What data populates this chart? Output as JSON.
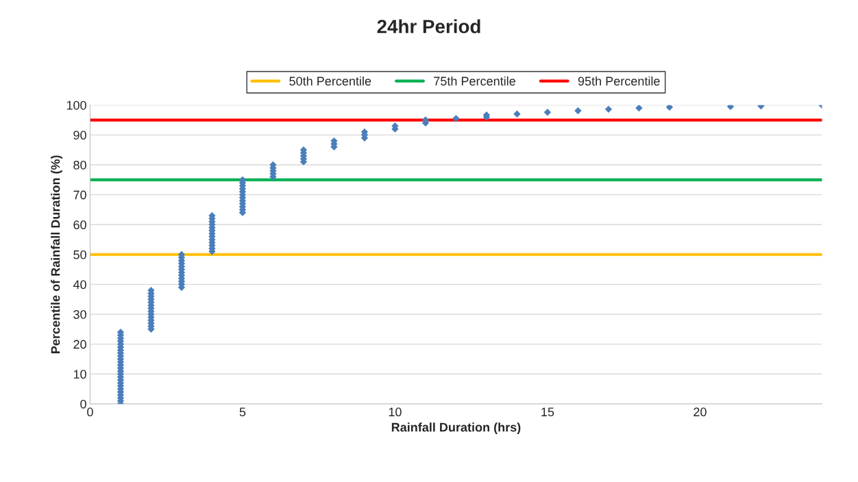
{
  "chart_data": {
    "type": "scatter",
    "title": "24hr Period",
    "xlabel": "Rainfall Duration (hrs)",
    "ylabel": "Percentile of Rainfall Duration (%)",
    "xlim": [
      0,
      24
    ],
    "xticks": [
      0,
      5,
      10,
      15,
      20
    ],
    "ylim": [
      0,
      100
    ],
    "yticks": [
      0,
      10,
      20,
      30,
      40,
      50,
      60,
      70,
      80,
      90,
      100
    ],
    "grid": "y",
    "legend": "top",
    "series": [
      {
        "marker": "diamond",
        "color": "#4a7ebb",
        "x": [
          1,
          1,
          1,
          1,
          1,
          1,
          1,
          1,
          1,
          1,
          1,
          1,
          1,
          1,
          1,
          1,
          1,
          1,
          1,
          1,
          1,
          1,
          1,
          1,
          1,
          2,
          2,
          2,
          2,
          2,
          2,
          2,
          2,
          2,
          2,
          2,
          2,
          2,
          2,
          3,
          3,
          3,
          3,
          3,
          3,
          3,
          3,
          3,
          3,
          3,
          3,
          4,
          4,
          4,
          4,
          4,
          4,
          4,
          4,
          4,
          4,
          4,
          4,
          4,
          5,
          5,
          5,
          5,
          5,
          5,
          5,
          5,
          5,
          5,
          5,
          5,
          6,
          6,
          6,
          6,
          6,
          7,
          7,
          7,
          7,
          7,
          8,
          8,
          8,
          9,
          9,
          9,
          10,
          10,
          11,
          11,
          12,
          13,
          13,
          14,
          15,
          16,
          17,
          18,
          19,
          21,
          22,
          24
        ],
        "values": [
          0,
          1,
          2,
          3,
          4,
          5,
          6,
          7,
          8,
          9,
          10,
          11,
          12,
          13,
          14,
          15,
          16,
          17,
          18,
          19,
          20,
          21,
          22,
          23,
          24,
          25,
          26,
          27,
          28,
          29,
          30,
          31,
          32,
          33,
          34,
          35,
          36,
          37,
          38,
          39,
          40,
          41,
          42,
          43,
          44,
          45,
          46,
          47,
          48,
          49,
          50,
          51,
          52,
          53,
          54,
          55,
          56,
          57,
          58,
          59,
          60,
          61,
          62,
          63,
          64,
          65,
          66,
          67,
          68,
          69,
          70,
          71,
          72,
          73,
          74,
          75,
          76,
          77,
          78,
          79,
          80,
          81,
          82,
          83,
          84,
          85,
          86,
          87,
          88,
          89,
          90,
          91,
          92,
          93,
          94,
          95,
          95.5,
          96,
          96.7,
          97,
          97.6,
          98.1,
          98.6,
          99,
          99.3,
          99.5,
          99.7,
          100
        ]
      },
      {
        "type": "line",
        "name": "50th Percentile",
        "color": "#ffc000",
        "x": [
          0,
          24
        ],
        "values": [
          50,
          50
        ]
      },
      {
        "type": "line",
        "name": "75th Percentile",
        "color": "#00b050",
        "x": [
          0,
          24
        ],
        "values": [
          75,
          75
        ]
      },
      {
        "type": "line",
        "name": "95th Percentile",
        "color": "#ff0000",
        "x": [
          0,
          24
        ],
        "values": [
          95,
          95
        ]
      }
    ]
  }
}
